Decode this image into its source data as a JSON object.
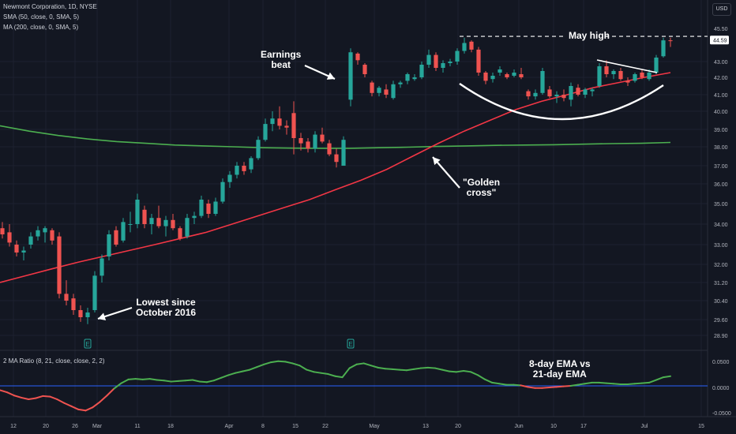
{
  "legend": {
    "title": "Newmont Corporation, 1D, NYSE",
    "sma50": "SMA (50, close, 0, SMA, 5)",
    "ma200": "MA (200, close, 0, SMA, 5)",
    "oscillator": "2 MA Ratio (8, 21, close, close, 2, 2)"
  },
  "currency": "USD",
  "colors": {
    "background": "#131722",
    "up": "#26a69a",
    "down": "#ef5350",
    "sma50": "#f23645",
    "ma200": "#4caf50",
    "zero_line": "#2962ff",
    "price_tag": "#ffffff"
  },
  "annotations": {
    "earnings": [
      "Earnings",
      "beat"
    ],
    "golden_cross": [
      "\"Golden",
      "cross\""
    ],
    "lowest": [
      "Lowest since",
      "October 2016"
    ],
    "may_high": "May high",
    "ema_note": [
      "8-day EMA vs",
      "21-day EMA"
    ]
  },
  "earnings_marker": "E",
  "chart_data": [
    {
      "type": "candlestick",
      "title": "Newmont Corporation, 1D, NYSE",
      "price_axis_ticks": [
        "45.50",
        "43.00",
        "42.00",
        "41.00",
        "40.00",
        "39.00",
        "38.00",
        "37.00",
        "36.00",
        "35.00",
        "34.00",
        "33.00",
        "32.00",
        "31.20",
        "30.40",
        "29.60",
        "28.90"
      ],
      "time_axis_ticks": [
        "12",
        "20",
        "26",
        "Mar",
        "11",
        "18",
        "Apr",
        "8",
        "15",
        "22",
        "May",
        "13",
        "20",
        "Jun",
        "10",
        "17",
        "Jul",
        "15"
      ],
      "last_price": "44.59",
      "candles": [
        {
          "o": 33.8,
          "h": 34.1,
          "l": 33.3,
          "c": 33.5
        },
        {
          "o": 33.6,
          "h": 34.0,
          "l": 32.9,
          "c": 33.1
        },
        {
          "o": 33.0,
          "h": 33.2,
          "l": 32.4,
          "c": 32.6
        },
        {
          "o": 32.6,
          "h": 32.9,
          "l": 32.2,
          "c": 32.7
        },
        {
          "o": 33.0,
          "h": 33.6,
          "l": 32.8,
          "c": 33.4
        },
        {
          "o": 33.4,
          "h": 33.9,
          "l": 33.2,
          "c": 33.7
        },
        {
          "o": 33.6,
          "h": 33.9,
          "l": 33.1,
          "c": 33.8
        },
        {
          "o": 33.7,
          "h": 33.8,
          "l": 33.0,
          "c": 33.2
        },
        {
          "o": 33.4,
          "h": 33.6,
          "l": 30.5,
          "c": 30.7
        },
        {
          "o": 30.7,
          "h": 31.3,
          "l": 30.2,
          "c": 30.4
        },
        {
          "o": 30.5,
          "h": 30.7,
          "l": 29.8,
          "c": 30.0
        },
        {
          "o": 30.0,
          "h": 30.2,
          "l": 29.5,
          "c": 29.7
        },
        {
          "o": 29.7,
          "h": 30.1,
          "l": 29.4,
          "c": 29.9
        },
        {
          "o": 30.0,
          "h": 31.7,
          "l": 29.9,
          "c": 31.5
        },
        {
          "o": 31.5,
          "h": 32.5,
          "l": 31.2,
          "c": 32.3
        },
        {
          "o": 32.4,
          "h": 33.7,
          "l": 32.2,
          "c": 33.5
        },
        {
          "o": 33.7,
          "h": 33.9,
          "l": 32.9,
          "c": 33.0
        },
        {
          "o": 33.2,
          "h": 34.3,
          "l": 33.1,
          "c": 34.1
        },
        {
          "o": 34.0,
          "h": 34.6,
          "l": 33.6,
          "c": 34.0
        },
        {
          "o": 34.0,
          "h": 35.5,
          "l": 33.8,
          "c": 35.2
        },
        {
          "o": 34.7,
          "h": 34.9,
          "l": 33.8,
          "c": 34.0
        },
        {
          "o": 34.0,
          "h": 34.5,
          "l": 33.5,
          "c": 34.3
        },
        {
          "o": 34.3,
          "h": 34.9,
          "l": 33.8,
          "c": 33.9
        },
        {
          "o": 33.9,
          "h": 34.4,
          "l": 33.4,
          "c": 34.2
        },
        {
          "o": 34.2,
          "h": 34.5,
          "l": 33.7,
          "c": 33.8
        },
        {
          "o": 33.8,
          "h": 33.9,
          "l": 33.2,
          "c": 33.3
        },
        {
          "o": 33.4,
          "h": 34.5,
          "l": 33.3,
          "c": 34.3
        },
        {
          "o": 34.3,
          "h": 34.6,
          "l": 34.0,
          "c": 34.4
        },
        {
          "o": 34.4,
          "h": 35.4,
          "l": 34.3,
          "c": 35.2
        },
        {
          "o": 35.0,
          "h": 35.2,
          "l": 34.3,
          "c": 34.5
        },
        {
          "o": 34.5,
          "h": 35.3,
          "l": 34.4,
          "c": 35.1
        },
        {
          "o": 35.1,
          "h": 36.3,
          "l": 35.0,
          "c": 36.1
        },
        {
          "o": 36.1,
          "h": 36.7,
          "l": 35.8,
          "c": 36.5
        },
        {
          "o": 36.5,
          "h": 37.2,
          "l": 36.3,
          "c": 37.0
        },
        {
          "o": 37.0,
          "h": 37.2,
          "l": 36.5,
          "c": 36.7
        },
        {
          "o": 36.8,
          "h": 37.5,
          "l": 36.6,
          "c": 37.4
        },
        {
          "o": 37.4,
          "h": 38.6,
          "l": 37.3,
          "c": 38.4
        },
        {
          "o": 38.4,
          "h": 39.6,
          "l": 38.3,
          "c": 39.3
        },
        {
          "o": 39.3,
          "h": 40.0,
          "l": 38.9,
          "c": 39.6
        },
        {
          "o": 39.6,
          "h": 40.3,
          "l": 39.0,
          "c": 39.2
        },
        {
          "o": 39.2,
          "h": 39.5,
          "l": 38.7,
          "c": 39.1
        },
        {
          "o": 39.9,
          "h": 40.6,
          "l": 37.6,
          "c": 38.5
        },
        {
          "o": 38.5,
          "h": 38.8,
          "l": 37.8,
          "c": 38.2
        },
        {
          "o": 38.3,
          "h": 38.5,
          "l": 37.7,
          "c": 37.9
        },
        {
          "o": 37.9,
          "h": 38.9,
          "l": 37.7,
          "c": 38.7
        },
        {
          "o": 38.7,
          "h": 39.1,
          "l": 38.2,
          "c": 38.3
        },
        {
          "o": 38.2,
          "h": 38.4,
          "l": 37.5,
          "c": 37.6
        },
        {
          "o": 37.6,
          "h": 37.9,
          "l": 36.9,
          "c": 37.2
        },
        {
          "o": 37.0,
          "h": 38.6,
          "l": 37.0,
          "c": 38.4
        },
        {
          "o": 40.7,
          "h": 44.0,
          "l": 40.3,
          "c": 43.7
        },
        {
          "o": 43.6,
          "h": 43.7,
          "l": 42.8,
          "c": 43.1
        },
        {
          "o": 42.8,
          "h": 42.9,
          "l": 42.0,
          "c": 42.2
        },
        {
          "o": 41.7,
          "h": 41.8,
          "l": 40.9,
          "c": 41.1
        },
        {
          "o": 41.1,
          "h": 41.5,
          "l": 40.9,
          "c": 41.4
        },
        {
          "o": 41.3,
          "h": 41.6,
          "l": 40.8,
          "c": 41.0
        },
        {
          "o": 40.8,
          "h": 41.8,
          "l": 40.7,
          "c": 41.6
        },
        {
          "o": 41.6,
          "h": 41.8,
          "l": 41.4,
          "c": 41.7
        },
        {
          "o": 41.8,
          "h": 42.3,
          "l": 41.6,
          "c": 42.2
        },
        {
          "o": 41.9,
          "h": 42.2,
          "l": 41.8,
          "c": 42.0
        },
        {
          "o": 42.0,
          "h": 43.0,
          "l": 41.9,
          "c": 42.8
        },
        {
          "o": 42.8,
          "h": 43.9,
          "l": 42.6,
          "c": 43.5
        },
        {
          "o": 43.5,
          "h": 43.7,
          "l": 42.4,
          "c": 42.6
        },
        {
          "o": 42.6,
          "h": 43.1,
          "l": 42.3,
          "c": 42.9
        },
        {
          "o": 42.9,
          "h": 43.2,
          "l": 42.7,
          "c": 43.0
        },
        {
          "o": 43.0,
          "h": 44.0,
          "l": 42.8,
          "c": 43.8
        },
        {
          "o": 43.8,
          "h": 44.8,
          "l": 43.6,
          "c": 44.4
        },
        {
          "o": 44.5,
          "h": 44.6,
          "l": 43.7,
          "c": 43.9
        },
        {
          "o": 43.9,
          "h": 44.1,
          "l": 42.1,
          "c": 42.3
        },
        {
          "o": 42.3,
          "h": 42.4,
          "l": 41.6,
          "c": 41.8
        },
        {
          "o": 41.9,
          "h": 42.3,
          "l": 41.7,
          "c": 42.1
        },
        {
          "o": 42.3,
          "h": 42.7,
          "l": 42.1,
          "c": 42.5
        },
        {
          "o": 42.2,
          "h": 42.3,
          "l": 41.9,
          "c": 42.0
        },
        {
          "o": 42.1,
          "h": 42.5,
          "l": 42.0,
          "c": 42.3
        },
        {
          "o": 42.2,
          "h": 42.6,
          "l": 41.9,
          "c": 42.0
        },
        {
          "o": 41.2,
          "h": 41.3,
          "l": 40.7,
          "c": 40.9
        },
        {
          "o": 40.9,
          "h": 41.3,
          "l": 40.7,
          "c": 41.1
        },
        {
          "o": 41.1,
          "h": 42.6,
          "l": 41.0,
          "c": 42.4
        },
        {
          "o": 41.3,
          "h": 41.5,
          "l": 40.8,
          "c": 40.9
        },
        {
          "o": 40.9,
          "h": 41.2,
          "l": 40.5,
          "c": 41.0
        },
        {
          "o": 41.0,
          "h": 41.3,
          "l": 40.6,
          "c": 40.8
        },
        {
          "o": 40.7,
          "h": 41.7,
          "l": 40.3,
          "c": 41.5
        },
        {
          "o": 41.4,
          "h": 41.6,
          "l": 40.9,
          "c": 41.0
        },
        {
          "o": 41.0,
          "h": 41.4,
          "l": 40.8,
          "c": 41.3
        },
        {
          "o": 41.2,
          "h": 41.4,
          "l": 40.9,
          "c": 41.3
        },
        {
          "o": 41.5,
          "h": 42.9,
          "l": 41.4,
          "c": 42.7
        },
        {
          "o": 42.7,
          "h": 43.1,
          "l": 42.0,
          "c": 42.2
        },
        {
          "o": 42.2,
          "h": 42.5,
          "l": 41.9,
          "c": 42.4
        },
        {
          "o": 42.4,
          "h": 42.6,
          "l": 41.8,
          "c": 41.9
        },
        {
          "o": 41.8,
          "h": 42.0,
          "l": 41.5,
          "c": 41.7
        },
        {
          "o": 41.8,
          "h": 42.3,
          "l": 41.7,
          "c": 42.2
        },
        {
          "o": 42.3,
          "h": 42.5,
          "l": 41.9,
          "c": 42.0
        },
        {
          "o": 41.9,
          "h": 42.5,
          "l": 41.8,
          "c": 42.3
        },
        {
          "o": 42.3,
          "h": 43.5,
          "l": 42.2,
          "c": 43.3
        },
        {
          "o": 43.4,
          "h": 44.8,
          "l": 43.3,
          "c": 44.6
        },
        {
          "o": 44.6,
          "h": 44.8,
          "l": 44.1,
          "c": 44.59
        }
      ],
      "sma50": [
        31.2,
        31.5,
        31.8,
        32.1,
        32.4,
        32.7,
        33.0,
        33.3,
        33.6,
        34.0,
        34.4,
        34.8,
        35.2,
        35.7,
        36.2,
        36.8,
        37.5,
        38.2,
        38.9,
        39.5,
        40.1,
        40.6,
        41.0,
        41.4,
        41.7,
        42.0,
        42.3
      ],
      "ma200": [
        39.2,
        38.9,
        38.65,
        38.45,
        38.3,
        38.2,
        38.1,
        38.05,
        38.0,
        37.95,
        37.93,
        37.92,
        37.92,
        37.95,
        37.98,
        38.02,
        38.05,
        38.08,
        38.1,
        38.12,
        38.15,
        38.18,
        38.2,
        38.25
      ],
      "may_high_price": 44.9,
      "earnings_candles": [
        12,
        49
      ]
    },
    {
      "type": "line",
      "title": "2 MA Ratio (8, 21, close, close, 2, 2)",
      "ylim": [
        -0.05,
        0.05
      ],
      "y_ticks": [
        "0.0500",
        "0.0000",
        "-0.0500"
      ],
      "zero_line": 0,
      "values": [
        -0.008,
        -0.012,
        -0.018,
        -0.022,
        -0.025,
        -0.023,
        -0.019,
        -0.02,
        -0.025,
        -0.032,
        -0.038,
        -0.044,
        -0.046,
        -0.04,
        -0.03,
        -0.018,
        -0.005,
        0.005,
        0.012,
        0.013,
        0.012,
        0.013,
        0.011,
        0.01,
        0.008,
        0.009,
        0.01,
        0.011,
        0.008,
        0.007,
        0.01,
        0.015,
        0.02,
        0.024,
        0.027,
        0.03,
        0.035,
        0.04,
        0.044,
        0.046,
        0.045,
        0.042,
        0.038,
        0.03,
        0.026,
        0.024,
        0.022,
        0.018,
        0.016,
        0.033,
        0.04,
        0.042,
        0.038,
        0.034,
        0.032,
        0.031,
        0.03,
        0.029,
        0.031,
        0.033,
        0.034,
        0.033,
        0.03,
        0.027,
        0.026,
        0.028,
        0.026,
        0.02,
        0.012,
        0.006,
        0.004,
        0.002,
        0.002,
        0.001,
        -0.002,
        -0.004,
        -0.004,
        -0.003,
        -0.002,
        -0.001,
        0.0,
        0.002,
        0.004,
        0.006,
        0.006,
        0.005,
        0.004,
        0.003,
        0.003,
        0.004,
        0.005,
        0.006,
        0.011,
        0.016,
        0.018
      ]
    }
  ]
}
